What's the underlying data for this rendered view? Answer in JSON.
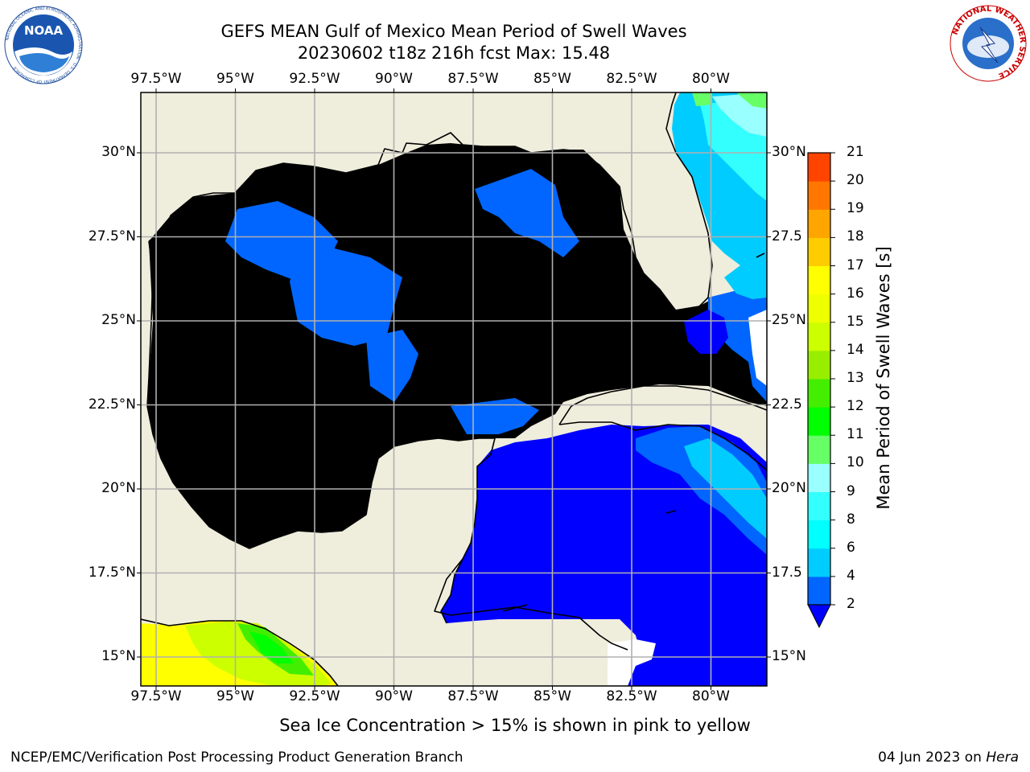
{
  "header": {
    "title_line1": "GEFS MEAN Gulf of Mexico Mean Period of Swell Waves",
    "title_line2": "20230602 t18z 216h fcst   Max: 15.48"
  },
  "map": {
    "lon_labels": [
      "97.5°W",
      "95°W",
      "92.5°W",
      "90°W",
      "87.5°W",
      "85°W",
      "82.5°W",
      "80°W"
    ],
    "lat_labels": [
      "30°N",
      "27.5°N",
      "25°N",
      "22.5°N",
      "20°N",
      "17.5°N",
      "15°N"
    ],
    "lat_labels_right": [
      "30°N",
      "27.5",
      "25°N",
      "22.5",
      "20°N",
      "17.5",
      "15°N"
    ],
    "colors": {
      "land": "#efeddc",
      "coast": "#000000",
      "grid": "#b0b0b0"
    }
  },
  "colorbar": {
    "label": "Mean Period of Swell Waves [s]",
    "ticks": [
      "2",
      "4",
      "6",
      "8",
      "9",
      "10",
      "11",
      "12",
      "13",
      "14",
      "15",
      "16",
      "17",
      "18",
      "19",
      "20",
      "21"
    ],
    "colors": [
      "#0066ff",
      "#00ccff",
      "#00ffff",
      "#33ffff",
      "#99ffff",
      "#66ff66",
      "#00ff00",
      "#44ee00",
      "#99ee00",
      "#ccff00",
      "#eeff00",
      "#ffff00",
      "#ffcc00",
      "#ffa500",
      "#ff7700",
      "#ff4400",
      "#ff0000"
    ],
    "under_color": "#0000ff"
  },
  "caption": "Sea Ice Concentration > 15% is shown in pink to yellow",
  "footer": {
    "left": "NCEP/EMC/Verification Post Processing Product Generation Branch",
    "right_date": "04 Jun 2023 on ",
    "right_host": "Hera"
  },
  "logos": {
    "noaa_text": "NOAA",
    "noaa_ring": "NATIONAL OCEANIC AND ATMOSPHERIC ADMINISTRATION · U.S. DEPARTMENT OF COMMERCE",
    "nws_ring": "NATIONAL WEATHER SERVICE"
  }
}
